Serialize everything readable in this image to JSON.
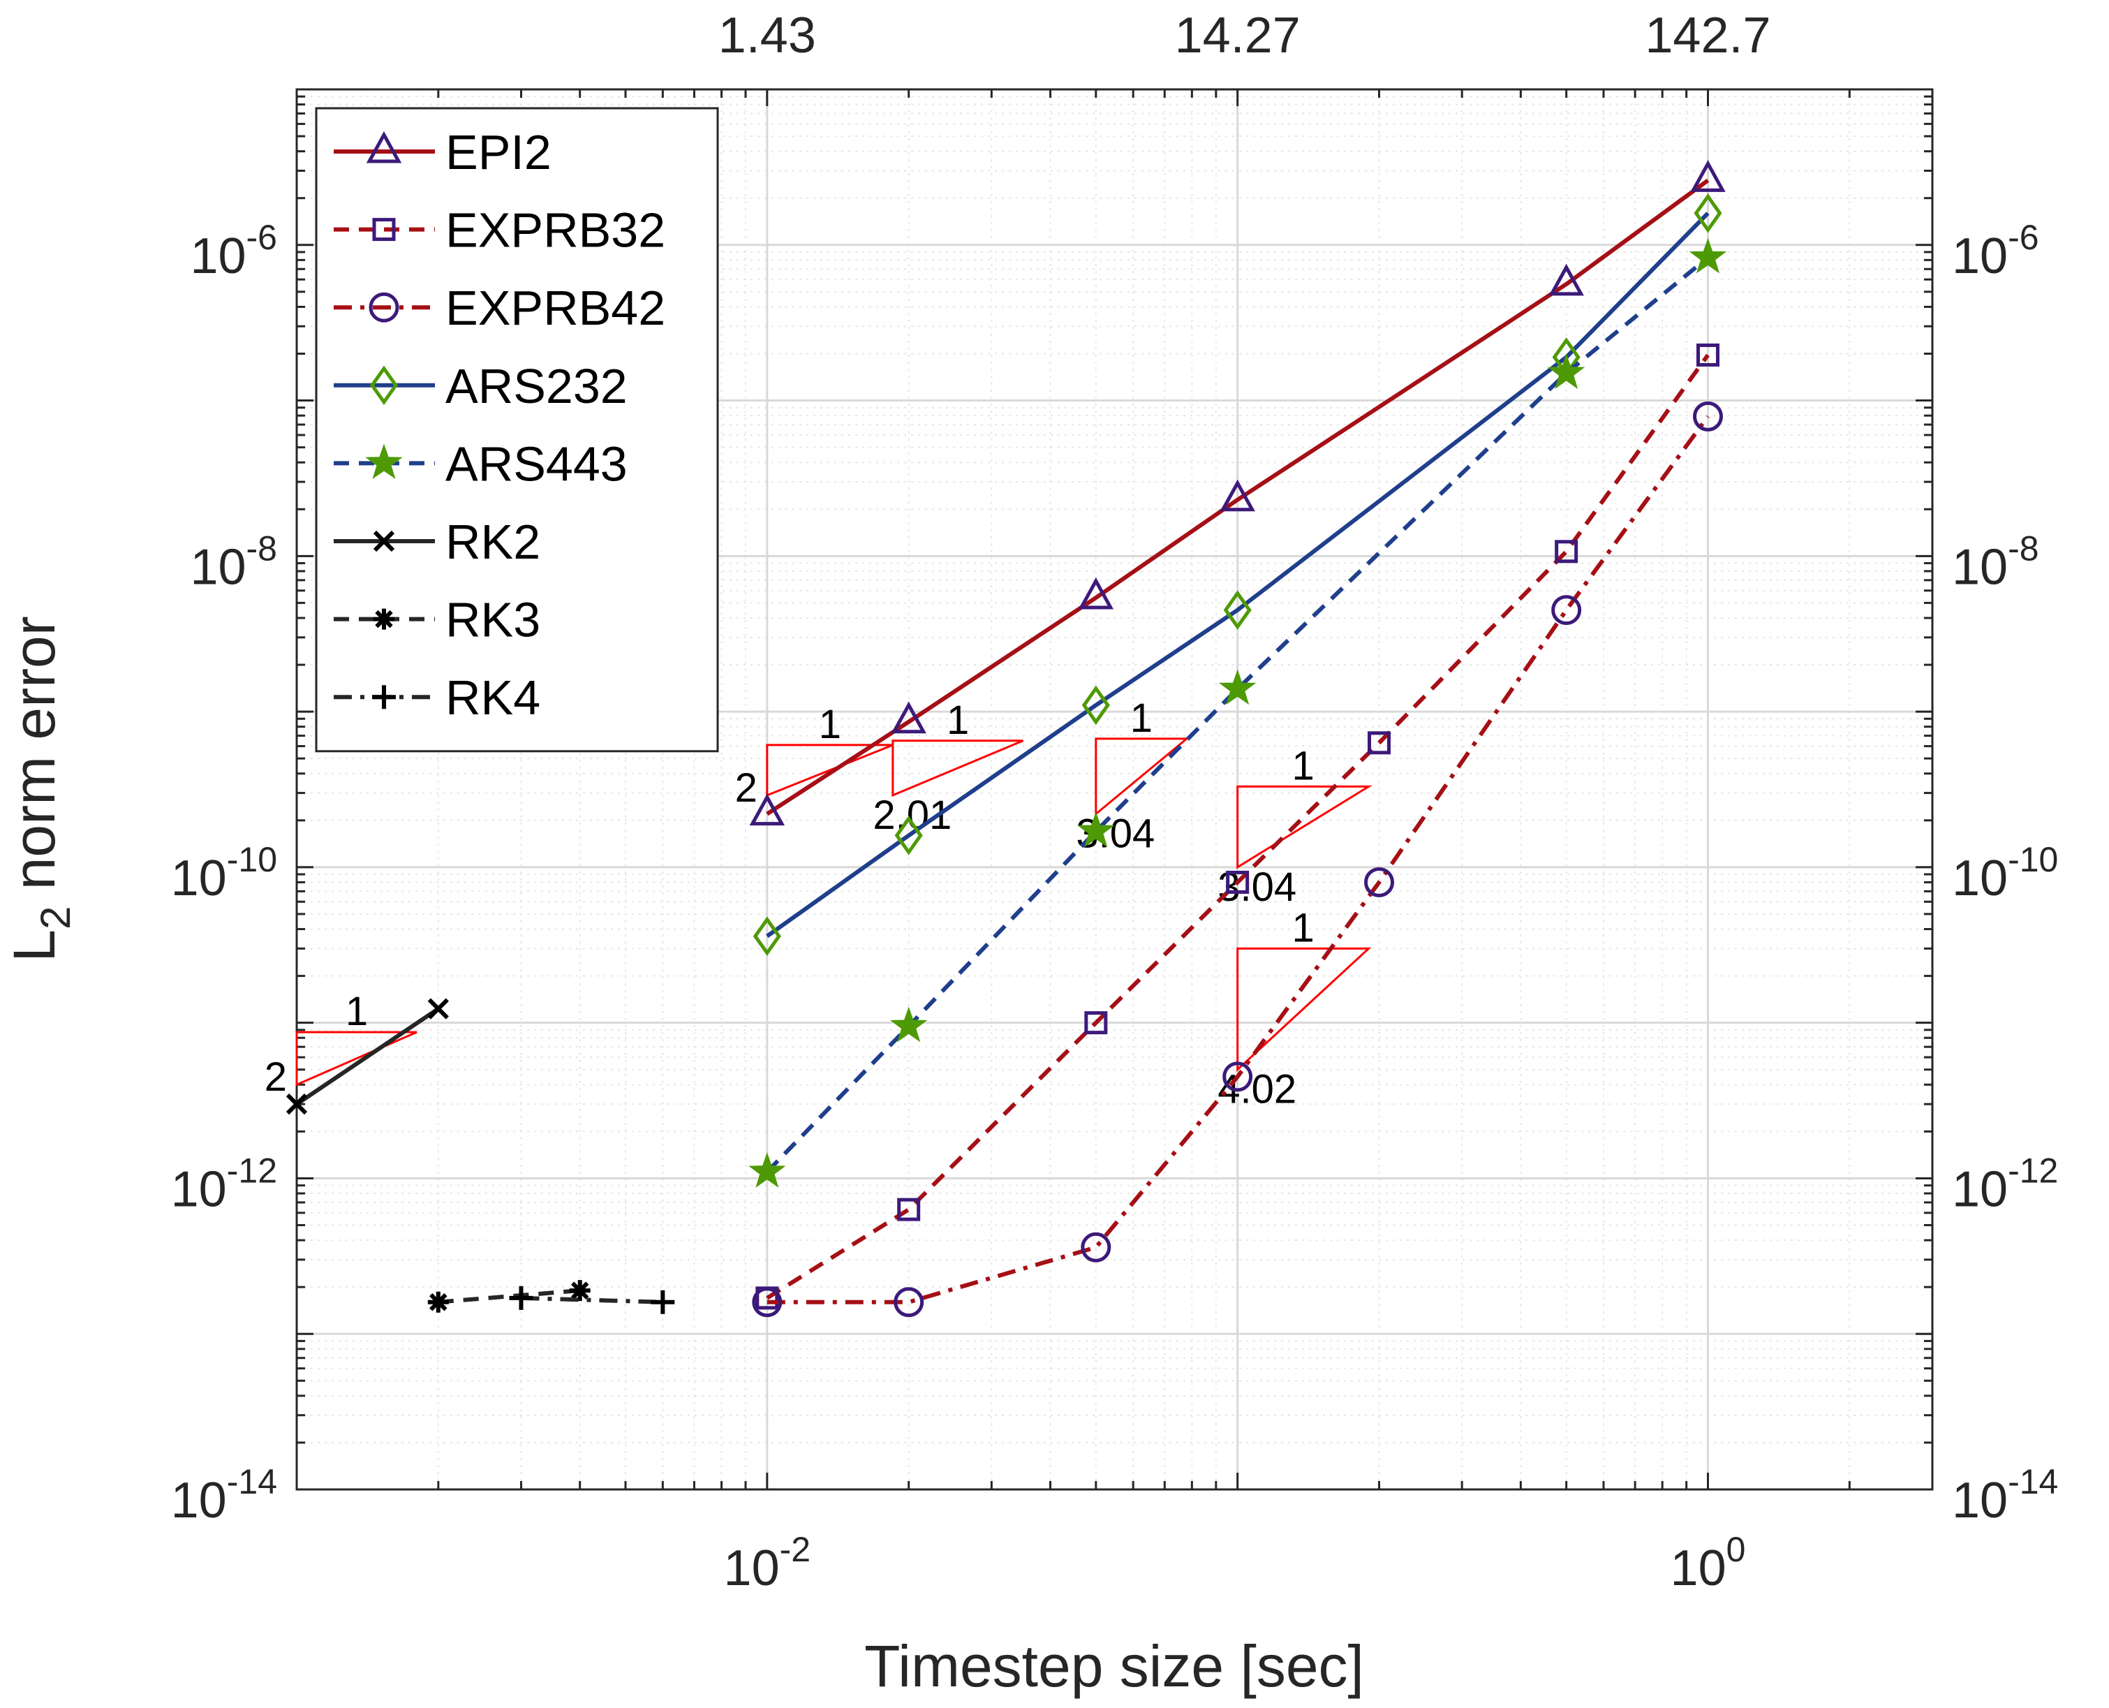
{
  "chart_data": {
    "type": "line",
    "xlabel": "Timestep size [sec]",
    "ylabel": "L",
    "ylabel_subscript": "2",
    "ylabel_rest": " norm error",
    "xscale": "log",
    "yscale": "log",
    "xlim": [
      0.001,
      3
    ],
    "ylim": [
      1e-14,
      1e-05
    ],
    "grid": "on (major and minor)",
    "legend_location": "top-left",
    "x_ticks": [
      {
        "value": 0.01,
        "base": "10",
        "exp": "-2"
      },
      {
        "value": 1,
        "base": "10",
        "exp": "0"
      }
    ],
    "y_ticks": [
      {
        "value": 1e-06,
        "base": "10",
        "exp": "-6"
      },
      {
        "value": 1e-08,
        "base": "10",
        "exp": "-8"
      },
      {
        "value": 1e-10,
        "base": "10",
        "exp": "-10"
      },
      {
        "value": 1e-12,
        "base": "10",
        "exp": "-12"
      },
      {
        "value": 1e-14,
        "base": "10",
        "exp": "-14"
      }
    ],
    "top_axis_ticks": [
      {
        "value": 0.01,
        "label": "1.43"
      },
      {
        "value": 0.1,
        "label": "14.27"
      },
      {
        "value": 1,
        "label": "142.7"
      }
    ],
    "series": [
      {
        "name": "EPI2",
        "color": "#a50f15",
        "marker_color": "#3c1a7a",
        "marker": "triangle",
        "dash": "solid",
        "x": [
          0.01,
          0.02,
          0.05,
          0.1,
          0.5,
          1.0
        ],
        "y": [
          2.2e-10,
          8.6e-10,
          5.4e-09,
          2.3e-08,
          5.6e-07,
          2.6e-06
        ]
      },
      {
        "name": "EXPRB32",
        "color": "#a50f15",
        "marker_color": "#3c1a7a",
        "marker": "square",
        "dash": "dashed",
        "x": [
          0.01,
          0.02,
          0.05,
          0.1,
          0.2,
          0.5,
          1.0
        ],
        "y": [
          1.7e-13,
          6.3e-13,
          1e-11,
          8e-11,
          6.3e-10,
          1.07e-08,
          1.96e-07
        ]
      },
      {
        "name": "EXPRB42",
        "color": "#a50f15",
        "marker_color": "#3c1a7a",
        "marker": "circle",
        "dash": "dashdot",
        "x": [
          0.01,
          0.02,
          0.05,
          0.1,
          0.2,
          0.5,
          1.0
        ],
        "y": [
          1.6e-13,
          1.6e-13,
          3.6e-13,
          4.5e-12,
          8e-11,
          4.5e-09,
          7.9e-08
        ]
      },
      {
        "name": "ARS232",
        "color": "#1f3f8c",
        "marker_color": "#4e9a06",
        "marker": "diamond",
        "dash": "solid",
        "x": [
          0.01,
          0.02,
          0.05,
          0.1,
          0.5,
          1.0
        ],
        "y": [
          3.6e-11,
          1.6e-10,
          1.1e-09,
          4.5e-09,
          1.9e-07,
          1.6e-06
        ]
      },
      {
        "name": "ARS443",
        "color": "#1f3f8c",
        "marker_color": "#4e9a06",
        "marker": "star",
        "dash": "dashed",
        "x": [
          0.01,
          0.02,
          0.05,
          0.1,
          0.5,
          1.0
        ],
        "y": [
          1.1e-12,
          9.5e-12,
          1.7e-10,
          1.4e-09,
          1.5e-07,
          8.3e-07
        ]
      },
      {
        "name": "RK2",
        "color": "#262626",
        "marker_color": "#000000",
        "marker": "x",
        "dash": "solid",
        "x": [
          0.001,
          0.002
        ],
        "y": [
          3e-12,
          1.23e-11
        ]
      },
      {
        "name": "RK3",
        "color": "#262626",
        "marker_color": "#000000",
        "marker": "asterisk",
        "dash": "dashed",
        "x": [
          0.002,
          0.004
        ],
        "y": [
          1.6e-13,
          1.9e-13
        ]
      },
      {
        "name": "RK4",
        "color": "#262626",
        "marker_color": "#000000",
        "marker": "plus",
        "dash": "dashdot",
        "x": [
          0.003,
          0.006
        ],
        "y": [
          1.7e-13,
          1.6e-13
        ]
      }
    ],
    "slope_triangles": [
      {
        "x0": 0.01,
        "x1": 0.0185,
        "y_low": 2.9e-10,
        "y_high": 6.1e-10,
        "run": "1",
        "rise": "2",
        "rise_side": "left"
      },
      {
        "x0": 0.0185,
        "x1": 0.035,
        "y_low": 2.9e-10,
        "y_high": 6.5e-10,
        "run": "1",
        "rise": "2.01",
        "rise_side": "below"
      },
      {
        "x0": 0.05,
        "x1": 0.078,
        "y_low": 2.2e-10,
        "y_high": 6.7e-10,
        "run": "1",
        "rise": "3.04",
        "rise_side": "below"
      },
      {
        "x0": 0.1,
        "x1": 0.19,
        "y_low": 1e-10,
        "y_high": 3.3e-10,
        "run": "1",
        "rise": "3.04",
        "rise_side": "below"
      },
      {
        "x0": 0.1,
        "x1": 0.19,
        "y_low": 5e-12,
        "y_high": 3e-11,
        "run": "1",
        "rise": "4.02",
        "rise_side": "below"
      },
      {
        "x0": 0.001,
        "x1": 0.0018,
        "y_low": 4e-12,
        "y_high": 8.7e-12,
        "run": "1",
        "rise": "2",
        "rise_side": "left"
      }
    ]
  }
}
